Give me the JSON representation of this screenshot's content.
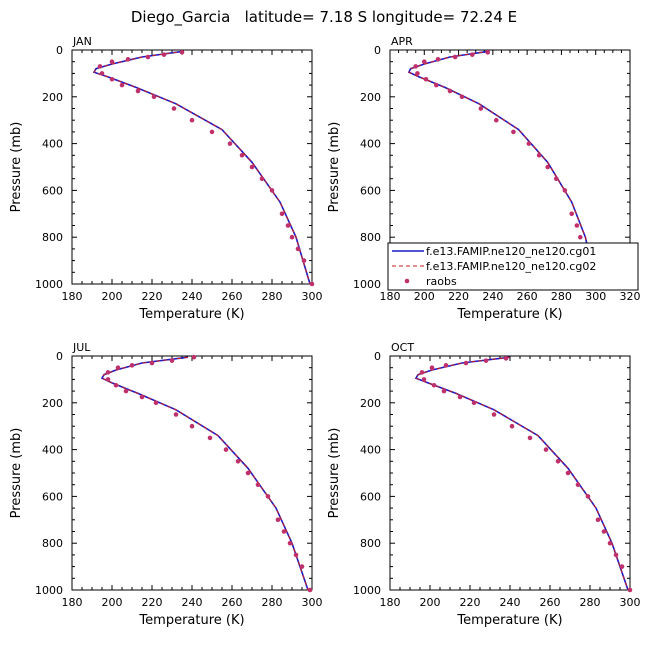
{
  "page_title": "Diego_Garcia   latitude= 7.18 S longitude= 72.24 E",
  "legend": {
    "entries": [
      {
        "label": "f.e13.FAMIP.ne120_ne120.cg01",
        "color": "#1a1acc",
        "style": "solid"
      },
      {
        "label": "f.e13.FAMIP.ne120_ne120.cg02",
        "color": "#c81e1e",
        "style": "dashed"
      },
      {
        "label": "raobs",
        "color": "#c0306a",
        "style": "dots"
      }
    ]
  },
  "chart_data": [
    {
      "type": "line",
      "panel_label": "JAN",
      "xlabel": "Temperature (K)",
      "ylabel": "Pressure (mb)",
      "xlim": [
        180,
        300
      ],
      "ylim": [
        1000,
        0
      ],
      "xticks": [
        180,
        200,
        220,
        240,
        260,
        280,
        300
      ],
      "yticks": [
        0,
        200,
        400,
        600,
        800,
        1000
      ],
      "series": [
        {
          "name": "f.e13.FAMIP.ne120_ne120.cg01",
          "color": "#1a1acc",
          "dash": false,
          "x": [
            236,
            215,
            200,
            192,
            191,
            198,
            212,
            232,
            255,
            270,
            284,
            292,
            299
          ],
          "y": [
            5,
            30,
            60,
            80,
            95,
            115,
            160,
            230,
            340,
            480,
            650,
            800,
            1000
          ]
        },
        {
          "name": "f.e13.FAMIP.ne120_ne120.cg02",
          "color": "#c81e1e",
          "dash": true,
          "x": [
            236,
            215,
            200,
            192,
            191,
            198,
            212,
            232,
            255,
            270,
            284,
            292,
            299
          ],
          "y": [
            5,
            30,
            60,
            80,
            95,
            115,
            160,
            230,
            340,
            480,
            650,
            800,
            1000
          ]
        },
        {
          "name": "raobs",
          "color": "#c0306a",
          "dots": true,
          "x": [
            235,
            226,
            218,
            208,
            200,
            194,
            195,
            200,
            205,
            213,
            221,
            231,
            240,
            250,
            259,
            265,
            270,
            275,
            280,
            285,
            288,
            290,
            293,
            296,
            300
          ],
          "y": [
            10,
            20,
            30,
            40,
            50,
            70,
            100,
            125,
            150,
            175,
            200,
            250,
            300,
            350,
            400,
            450,
            500,
            550,
            600,
            700,
            750,
            800,
            850,
            900,
            1000
          ]
        }
      ]
    },
    {
      "type": "line",
      "panel_label": "APR",
      "xlabel": "Temperature (K)",
      "ylabel": "Pressure (mb)",
      "xlim": [
        180,
        320
      ],
      "ylim": [
        1000,
        0
      ],
      "xticks": [
        180,
        200,
        220,
        240,
        260,
        280,
        300,
        320
      ],
      "yticks": [
        0,
        200,
        400,
        600,
        800,
        1000
      ],
      "series": [
        {
          "name": "f.e13.FAMIP.ne120_ne120.cg01",
          "color": "#1a1acc",
          "dash": false,
          "x": [
            238,
            215,
            200,
            192,
            191,
            197,
            212,
            232,
            255,
            272,
            286,
            294,
            300
          ],
          "y": [
            5,
            30,
            60,
            80,
            95,
            115,
            160,
            230,
            340,
            480,
            650,
            800,
            1000
          ]
        },
        {
          "name": "f.e13.FAMIP.ne120_ne120.cg02",
          "color": "#c81e1e",
          "dash": true,
          "x": [
            238,
            215,
            200,
            192,
            191,
            197,
            212,
            232,
            255,
            272,
            286,
            294,
            300
          ],
          "y": [
            5,
            30,
            60,
            80,
            95,
            115,
            160,
            230,
            340,
            480,
            650,
            800,
            1000
          ]
        },
        {
          "name": "raobs",
          "color": "#c0306a",
          "dots": true,
          "x": [
            237,
            228,
            218,
            208,
            200,
            195,
            196,
            201,
            207,
            215,
            222,
            233,
            242,
            252,
            261,
            267,
            272,
            277,
            282,
            286,
            289,
            291,
            294,
            297,
            301
          ],
          "y": [
            10,
            20,
            30,
            40,
            50,
            70,
            100,
            125,
            150,
            175,
            200,
            250,
            300,
            350,
            400,
            450,
            500,
            550,
            600,
            700,
            750,
            800,
            850,
            900,
            1000
          ]
        }
      ]
    },
    {
      "type": "line",
      "panel_label": "JUL",
      "xlabel": "Temperature (K)",
      "ylabel": "Pressure (mb)",
      "xlim": [
        180,
        300
      ],
      "ylim": [
        1000,
        0
      ],
      "xticks": [
        180,
        200,
        220,
        240,
        260,
        280,
        300
      ],
      "yticks": [
        0,
        200,
        400,
        600,
        800,
        1000
      ],
      "series": [
        {
          "name": "f.e13.FAMIP.ne120_ne120.cg01",
          "color": "#1a1acc",
          "dash": false,
          "x": [
            238,
            215,
            202,
            196,
            195,
            200,
            213,
            232,
            253,
            268,
            282,
            290,
            298
          ],
          "y": [
            5,
            30,
            60,
            80,
            95,
            115,
            160,
            230,
            340,
            480,
            650,
            800,
            1000
          ]
        },
        {
          "name": "f.e13.FAMIP.ne120_ne120.cg02",
          "color": "#c81e1e",
          "dash": true,
          "x": [
            238,
            215,
            202,
            196,
            195,
            200,
            213,
            232,
            253,
            268,
            282,
            290,
            298
          ],
          "y": [
            5,
            30,
            60,
            80,
            95,
            115,
            160,
            230,
            340,
            480,
            650,
            800,
            1000
          ]
        },
        {
          "name": "raobs",
          "color": "#c0306a",
          "dots": true,
          "x": [
            241,
            230,
            220,
            210,
            203,
            198,
            198,
            202,
            207,
            215,
            222,
            232,
            240,
            249,
            257,
            263,
            268,
            273,
            278,
            283,
            286,
            289,
            292,
            295,
            299
          ],
          "y": [
            5,
            20,
            30,
            40,
            50,
            70,
            100,
            125,
            150,
            175,
            200,
            250,
            300,
            350,
            400,
            450,
            500,
            550,
            600,
            700,
            750,
            800,
            850,
            900,
            1000
          ]
        }
      ]
    },
    {
      "type": "line",
      "panel_label": "OCT",
      "xlabel": "Temperature (K)",
      "ylabel": "Pressure (mb)",
      "xlim": [
        180,
        300
      ],
      "ylim": [
        1000,
        0
      ],
      "xticks": [
        180,
        200,
        220,
        240,
        260,
        280,
        300
      ],
      "yticks": [
        0,
        200,
        400,
        600,
        800,
        1000
      ],
      "series": [
        {
          "name": "f.e13.FAMIP.ne120_ne120.cg01",
          "color": "#1a1acc",
          "dash": false,
          "x": [
            240,
            216,
            201,
            194,
            193,
            199,
            213,
            232,
            254,
            269,
            283,
            291,
            299
          ],
          "y": [
            5,
            30,
            60,
            80,
            95,
            115,
            160,
            230,
            340,
            480,
            650,
            800,
            1000
          ]
        },
        {
          "name": "f.e13.FAMIP.ne120_ne120.cg02",
          "color": "#c81e1e",
          "dash": true,
          "x": [
            240,
            216,
            201,
            194,
            193,
            199,
            213,
            232,
            254,
            269,
            283,
            291,
            299
          ],
          "y": [
            5,
            30,
            60,
            80,
            95,
            115,
            160,
            230,
            340,
            480,
            650,
            800,
            1000
          ]
        },
        {
          "name": "raobs",
          "color": "#c0306a",
          "dots": true,
          "x": [
            238,
            228,
            218,
            208,
            201,
            196,
            197,
            202,
            207,
            215,
            222,
            232,
            241,
            250,
            258,
            264,
            269,
            274,
            279,
            284,
            287,
            290,
            293,
            296,
            300
          ],
          "y": [
            10,
            20,
            30,
            40,
            50,
            70,
            100,
            125,
            150,
            175,
            200,
            250,
            300,
            350,
            400,
            450,
            500,
            550,
            600,
            700,
            750,
            800,
            850,
            900,
            1000
          ]
        }
      ]
    }
  ]
}
